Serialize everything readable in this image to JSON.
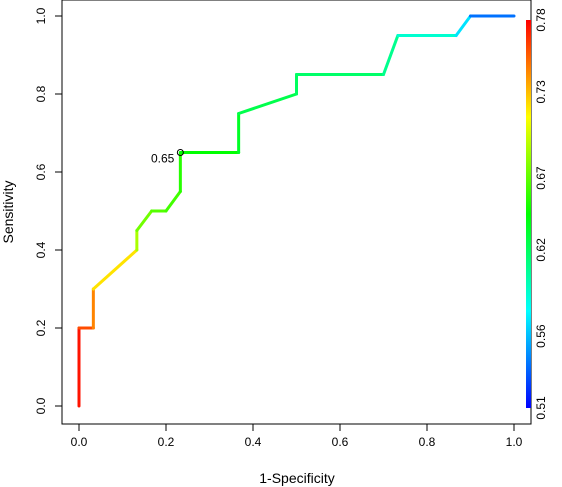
{
  "chart_data": {
    "type": "line",
    "title": "",
    "xlabel": "1-Specificity",
    "ylabel": "Sensitivity",
    "xlim": [
      0,
      1
    ],
    "ylim": [
      0,
      1
    ],
    "x_ticks": [
      "0.0",
      "0.2",
      "0.4",
      "0.6",
      "0.8",
      "1.0"
    ],
    "y_ticks": [
      "0.0",
      "0.2",
      "0.4",
      "0.6",
      "0.8",
      "1.0"
    ],
    "series": [
      {
        "x": [
          0.0,
          0.0,
          0.033,
          0.033,
          0.133,
          0.133,
          0.167,
          0.2,
          0.233,
          0.233,
          0.367,
          0.367,
          0.5,
          0.5,
          0.7,
          0.733,
          0.867,
          0.9,
          1.0
        ],
        "y": [
          0.0,
          0.2,
          0.2,
          0.3,
          0.4,
          0.45,
          0.5,
          0.5,
          0.55,
          0.65,
          0.65,
          0.75,
          0.8,
          0.85,
          0.85,
          0.95,
          0.95,
          1.0,
          1.0
        ],
        "threshold": [
          0.78,
          0.77,
          0.75,
          0.74,
          0.7,
          0.68,
          0.67,
          0.665,
          0.66,
          0.65,
          0.64,
          0.63,
          0.62,
          0.62,
          0.615,
          0.6,
          0.58,
          0.56,
          0.52
        ]
      }
    ],
    "annotation": {
      "x": 0.233,
      "y": 0.65,
      "label": "0.65"
    },
    "colorbar": {
      "ticks": [
        0.51,
        0.56,
        0.62,
        0.67,
        0.73,
        0.78
      ],
      "tick_labels": [
        "0.51",
        "0.56",
        "0.62",
        "0.67",
        "0.73",
        "0.78"
      ],
      "range": [
        0.51,
        0.78
      ],
      "colormap": [
        "#0000ff",
        "#00ffff",
        "#00ff00",
        "#ffff00",
        "#ff0000"
      ]
    },
    "legend": "none",
    "grid": false
  }
}
